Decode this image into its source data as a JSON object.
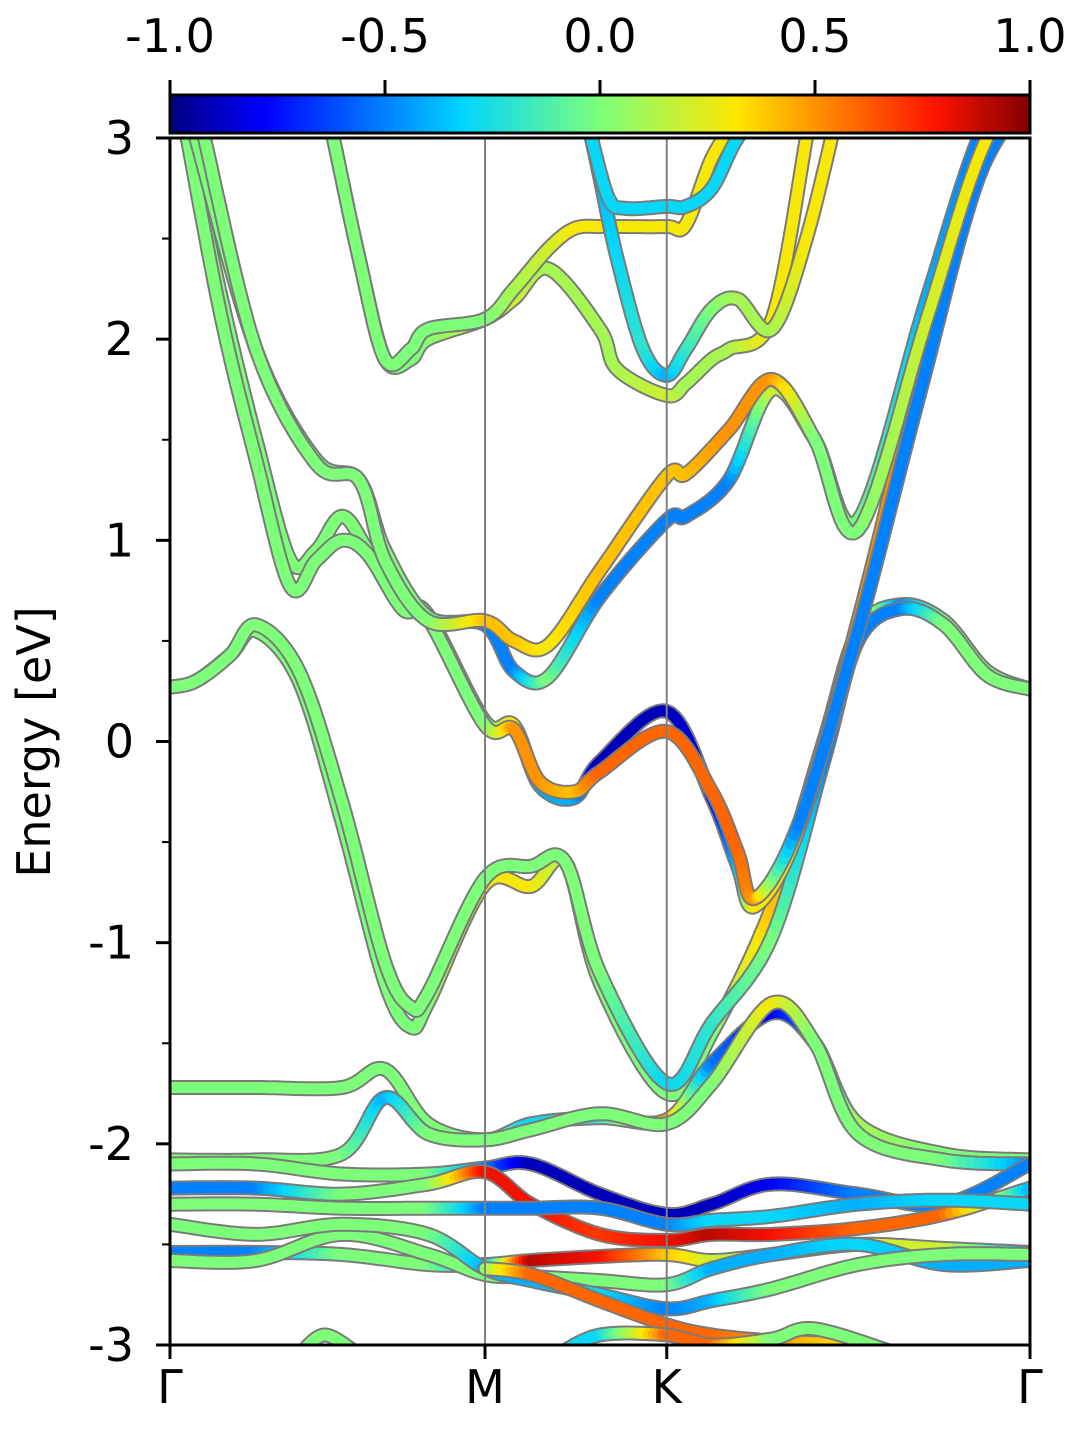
{
  "chart_data": {
    "type": "line",
    "title": "",
    "xlabel": "",
    "ylabel": "Energy [eV]",
    "ylim": [
      -3,
      3
    ],
    "y_ticks": [
      "3",
      "2",
      "1",
      "0",
      "-1",
      "-2",
      "-3"
    ],
    "y_tick_values": [
      3,
      2,
      1,
      0,
      -1,
      -2,
      -3
    ],
    "x_ticks": [
      "Γ",
      "M",
      "K",
      "Γ"
    ],
    "x_tick_positions": [
      0,
      0.3663,
      0.5776,
      1.0
    ],
    "vertical_lines_at": [
      0.3663,
      0.5776
    ],
    "grid": false,
    "colorbar": {
      "orientation": "horizontal",
      "placement": "top",
      "colormap": "jet",
      "range": [
        -1.0,
        1.0
      ],
      "tick_labels": [
        "-1.0",
        "-0.5",
        "0.0",
        "0.5",
        "1.0"
      ],
      "tick_values": [
        -1.0,
        -0.5,
        0.0,
        0.5,
        1.0
      ]
    },
    "series": [
      {
        "x": [
          0,
          0.03,
          0.07,
          0.1,
          0.15,
          0.2,
          0.25,
          0.28,
          0.3,
          0.3663,
          0.42,
          0.46,
          0.5,
          0.5776,
          0.63,
          0.7,
          0.76,
          0.8,
          0.85,
          0.9,
          0.95,
          1.0
        ],
        "y": [
          0.27,
          0.3,
          0.43,
          0.55,
          0.3,
          -0.4,
          -1.2,
          -1.42,
          -1.3,
          -0.71,
          -0.72,
          -0.6,
          -1.2,
          -1.75,
          -1.45,
          -0.82,
          0.0,
          0.55,
          0.68,
          0.6,
          0.35,
          0.26
        ],
        "c": [
          0,
          0,
          0,
          0,
          0,
          0,
          0,
          0,
          0,
          0.3,
          0.3,
          0.1,
          0,
          0,
          0,
          0.4,
          0.4,
          0.5,
          -0.5,
          0,
          0,
          0
        ]
      },
      {
        "x": [
          0,
          0.03,
          0.07,
          0.1,
          0.15,
          0.2,
          0.25,
          0.28,
          0.3,
          0.3663,
          0.42,
          0.46,
          0.5,
          0.5776,
          0.63,
          0.7,
          0.76,
          0.8,
          0.85,
          0.9,
          0.95,
          1.0
        ],
        "y": [
          0.27,
          0.3,
          0.43,
          0.58,
          0.35,
          -0.3,
          -1.1,
          -1.32,
          -1.25,
          -0.68,
          -0.62,
          -0.6,
          -1.15,
          -1.7,
          -1.4,
          -0.97,
          -0.1,
          0.5,
          0.66,
          0.58,
          0.33,
          0.26
        ],
        "c": [
          0,
          0,
          0,
          0,
          0,
          0,
          0,
          0,
          0,
          0,
          0,
          0,
          0,
          -0.3,
          -0.2,
          0,
          -0.5,
          -0.5,
          -0.5,
          0,
          0,
          0
        ]
      },
      {
        "x": [
          0.02,
          0.06,
          0.1,
          0.14,
          0.17,
          0.2,
          0.23,
          0.27,
          0.3,
          0.3663,
          0.4,
          0.43,
          0.47,
          0.5,
          0.5776,
          0.63,
          0.66,
          0.68,
          0.73,
          0.8,
          0.87,
          0.94,
          1.0
        ],
        "y": [
          3.0,
          2.2,
          1.5,
          0.9,
          0.95,
          1.12,
          0.95,
          0.68,
          0.63,
          0.1,
          0.08,
          -0.22,
          -0.28,
          -0.1,
          0.15,
          -0.28,
          -0.62,
          -0.82,
          -0.45,
          0.6,
          1.8,
          2.9,
          3.3
        ],
        "c": [
          0,
          0,
          0,
          0,
          0,
          0,
          0,
          0,
          0,
          0,
          0.3,
          -0.4,
          -0.4,
          -0.9,
          -0.9,
          -0.8,
          -0.4,
          0.3,
          0.3,
          0.5,
          0.5,
          0.2,
          0.2
        ]
      },
      {
        "x": [
          0.02,
          0.06,
          0.1,
          0.14,
          0.17,
          0.2,
          0.23,
          0.27,
          0.3,
          0.3663,
          0.4,
          0.43,
          0.47,
          0.5,
          0.5776,
          0.63,
          0.66,
          0.68,
          0.73,
          0.8,
          0.87,
          0.94,
          1.0
        ],
        "y": [
          3.0,
          2.1,
          1.4,
          0.77,
          0.9,
          1.0,
          0.93,
          0.66,
          0.61,
          0.08,
          0.06,
          -0.2,
          -0.25,
          -0.15,
          0.05,
          -0.25,
          -0.55,
          -0.78,
          -0.42,
          0.55,
          1.7,
          2.8,
          3.2
        ],
        "c": [
          0,
          0,
          0,
          0,
          0,
          0,
          0,
          0,
          0,
          0,
          0.5,
          0.5,
          0.4,
          0.6,
          0.6,
          0.6,
          0.6,
          0.5,
          -0.5,
          -0.5,
          -0.5,
          -0.5,
          -0.5
        ]
      },
      {
        "x": [
          0.03,
          0.1,
          0.17,
          0.22,
          0.25,
          0.3,
          0.3663,
          0.4,
          0.44,
          0.5,
          0.5776,
          0.6,
          0.65,
          0.7,
          0.75,
          0.8,
          0.88,
          0.94,
          1.0
        ],
        "y": [
          3.0,
          1.95,
          1.4,
          1.3,
          0.95,
          0.62,
          0.58,
          0.35,
          0.32,
          0.72,
          1.1,
          1.12,
          1.3,
          1.75,
          1.5,
          1.1,
          2.2,
          3.0,
          3.5
        ],
        "c": [
          0,
          0,
          0,
          0,
          0,
          0,
          -0.5,
          -0.5,
          0,
          -0.5,
          -0.5,
          -0.5,
          -0.5,
          0.2,
          0,
          0,
          -0.4,
          -0.5,
          -0.5
        ]
      },
      {
        "x": [
          0.04,
          0.1,
          0.17,
          0.22,
          0.25,
          0.3,
          0.3663,
          0.4,
          0.44,
          0.5,
          0.5776,
          0.6,
          0.65,
          0.7,
          0.75,
          0.8,
          0.88,
          0.94,
          1.0
        ],
        "y": [
          3.0,
          1.95,
          1.38,
          1.3,
          0.9,
          0.6,
          0.6,
          0.5,
          0.48,
          0.85,
          1.32,
          1.33,
          1.55,
          1.8,
          1.5,
          1.05,
          2.1,
          2.9,
          3.4
        ],
        "c": [
          0,
          0,
          0,
          0,
          0,
          0,
          0.4,
          0.4,
          0.3,
          0.4,
          0.4,
          0.4,
          0.5,
          0.5,
          0,
          0,
          0.2,
          0.3,
          0.3
        ]
      },
      {
        "x": [
          0.19,
          0.22,
          0.25,
          0.28,
          0.3,
          0.3663,
          0.4,
          0.44,
          0.5,
          0.52,
          0.5776,
          0.6,
          0.63,
          0.65,
          0.7,
          0.74
        ],
        "y": [
          3.0,
          2.4,
          1.9,
          1.9,
          2.0,
          2.1,
          2.2,
          2.35,
          2.05,
          1.85,
          1.72,
          1.78,
          1.9,
          1.95,
          2.1,
          3.0
        ],
        "c": [
          0,
          0,
          0,
          0,
          0,
          0.2,
          0.2,
          0.1,
          0.1,
          0.1,
          0.2,
          0.1,
          0.1,
          0.1,
          0.3,
          0.3
        ]
      },
      {
        "x": [
          0.19,
          0.22,
          0.25,
          0.28,
          0.3,
          0.3663,
          0.4,
          0.44,
          0.47,
          0.5,
          0.52,
          0.5776,
          0.6,
          0.63,
          0.66
        ],
        "y": [
          3.0,
          2.4,
          1.9,
          1.95,
          2.05,
          2.1,
          2.25,
          2.45,
          2.55,
          2.56,
          2.56,
          2.56,
          2.57,
          2.9,
          3.1
        ],
        "c": [
          0,
          0,
          0,
          0,
          0,
          0,
          0.1,
          0.2,
          0.3,
          0.3,
          0.3,
          0.3,
          0.3,
          0.3,
          0.3
        ]
      },
      {
        "x": [
          0.49,
          0.5,
          0.52,
          0.55,
          0.5776,
          0.6,
          0.63,
          0.66,
          0.7,
          0.74,
          0.78
        ],
        "y": [
          3.0,
          2.8,
          2.4,
          1.95,
          1.82,
          1.95,
          2.15,
          2.2,
          2.05,
          2.5,
          3.2
        ],
        "c": [
          -0.4,
          -0.4,
          -0.3,
          -0.2,
          -0.4,
          -0.2,
          0,
          0.1,
          0.1,
          0.3,
          0.3
        ]
      },
      {
        "x": [
          0.49,
          0.51,
          0.53,
          0.5776,
          0.6,
          0.63,
          0.66,
          0.7
        ],
        "y": [
          3.0,
          2.7,
          2.65,
          2.66,
          2.66,
          2.75,
          3.0,
          3.2
        ],
        "c": [
          -0.3,
          -0.3,
          -0.3,
          -0.3,
          -0.3,
          -0.3,
          -0.3,
          -0.3
        ]
      },
      {
        "x": [
          0,
          0.1,
          0.2,
          0.25,
          0.3,
          0.3663,
          0.42,
          0.5,
          0.5776,
          0.63,
          0.7,
          0.75,
          0.8,
          0.9,
          1.0
        ],
        "y": [
          -1.72,
          -1.72,
          -1.72,
          -1.63,
          -1.9,
          -1.98,
          -1.9,
          -1.87,
          -1.88,
          -1.6,
          -1.35,
          -1.5,
          -1.9,
          -2.05,
          -2.08
        ],
        "c": [
          0,
          0,
          0,
          0,
          0,
          0,
          -0.3,
          -0.2,
          0.5,
          -0.5,
          -0.8,
          -0.5,
          0.1,
          0,
          0
        ]
      },
      {
        "x": [
          0,
          0.1,
          0.2,
          0.25,
          0.3,
          0.3663,
          0.42,
          0.5,
          0.5776,
          0.63,
          0.7,
          0.75,
          0.8,
          0.9,
          1.0
        ],
        "y": [
          -2.08,
          -2.08,
          -2.05,
          -1.77,
          -1.95,
          -1.98,
          -1.93,
          -1.85,
          -1.9,
          -1.7,
          -1.3,
          -1.5,
          -1.95,
          -2.08,
          -2.1
        ],
        "c": [
          0,
          0,
          0,
          -0.4,
          0,
          0,
          0,
          0,
          0,
          0,
          0.3,
          0,
          0,
          0,
          -0.5
        ]
      },
      {
        "x": [
          0,
          0.1,
          0.2,
          0.3,
          0.3663,
          0.42,
          0.5,
          0.5776,
          0.63,
          0.7,
          0.8,
          0.9,
          1.0
        ],
        "y": [
          -2.1,
          -2.1,
          -2.15,
          -2.15,
          -2.12,
          -2.1,
          -2.25,
          -2.35,
          -2.3,
          -2.2,
          -2.25,
          -2.3,
          -2.1
        ],
        "c": [
          0,
          0,
          0,
          0,
          -0.5,
          -0.9,
          -0.9,
          -0.9,
          -0.9,
          -0.8,
          -0.5,
          -0.5,
          -0.5
        ]
      },
      {
        "x": [
          0,
          0.1,
          0.2,
          0.3,
          0.3663,
          0.42,
          0.5,
          0.5776,
          0.63,
          0.7,
          0.8,
          0.9,
          1.0
        ],
        "y": [
          -2.22,
          -2.22,
          -2.25,
          -2.2,
          -2.14,
          -2.3,
          -2.45,
          -2.48,
          -2.45,
          -2.45,
          -2.42,
          -2.35,
          -2.22
        ],
        "c": [
          -0.5,
          -0.5,
          0,
          0,
          0.8,
          0.8,
          0.7,
          0.8,
          0.9,
          0.8,
          0.6,
          0.6,
          -0.4
        ]
      },
      {
        "x": [
          0,
          0.1,
          0.2,
          0.3,
          0.3663,
          0.42,
          0.5,
          0.5776,
          0.63,
          0.7,
          0.8,
          0.9,
          1.0
        ],
        "y": [
          -2.3,
          -2.3,
          -2.32,
          -2.32,
          -2.32,
          -2.32,
          -2.32,
          -2.4,
          -2.38,
          -2.36,
          -2.3,
          -2.28,
          -2.3
        ],
        "c": [
          0,
          0,
          0,
          0,
          -0.5,
          -0.5,
          -0.5,
          -0.5,
          -0.3,
          -0.3,
          -0.4,
          -0.3,
          -0.3
        ]
      },
      {
        "x": [
          0,
          0.1,
          0.2,
          0.3,
          0.3663,
          0.42,
          0.5,
          0.5776,
          0.63,
          0.7,
          0.8,
          0.9,
          1.0
        ],
        "y": [
          -2.54,
          -2.54,
          -2.55,
          -2.6,
          -2.6,
          -2.58,
          -2.56,
          -2.55,
          -2.58,
          -2.55,
          -2.5,
          -2.52,
          -2.54
        ],
        "c": [
          -0.5,
          -0.5,
          0,
          0,
          -0.4,
          0.9,
          0.8,
          0.4,
          0.2,
          0.1,
          0.2,
          0.2,
          -0.5
        ]
      },
      {
        "x": [
          0,
          0.1,
          0.2,
          0.3,
          0.3663,
          0.42,
          0.5,
          0.5776,
          0.63,
          0.7,
          0.8,
          0.9,
          1.0
        ],
        "y": [
          -2.58,
          -2.58,
          -2.45,
          -2.55,
          -2.65,
          -2.66,
          -2.68,
          -2.7,
          -2.62,
          -2.55,
          -2.5,
          -2.6,
          -2.58
        ],
        "c": [
          0,
          0,
          0,
          0,
          0,
          0,
          0,
          0,
          -0.4,
          -0.4,
          -0.3,
          -0.4,
          -0.4
        ]
      },
      {
        "x": [
          0,
          0.1,
          0.2,
          0.3,
          0.3663,
          0.42,
          0.5,
          0.5776,
          0.63,
          0.7,
          0.8,
          0.9,
          1.0
        ],
        "y": [
          -2.4,
          -2.45,
          -2.4,
          -2.45,
          -2.62,
          -2.68,
          -2.75,
          -2.82,
          -2.78,
          -2.72,
          -2.6,
          -2.55,
          -2.55
        ],
        "c": [
          0,
          0,
          0,
          0,
          -0.4,
          -0.4,
          -0.3,
          -0.5,
          -0.4,
          0,
          0,
          0,
          0
        ]
      },
      {
        "x": [
          0.3663,
          0.42,
          0.5,
          0.5776,
          0.63,
          0.7,
          0.8,
          0.85
        ],
        "y": [
          -2.62,
          -2.65,
          -2.78,
          -2.9,
          -2.95,
          -2.98,
          -3.0,
          -3.05
        ],
        "c": [
          0,
          0.6,
          0.6,
          0.6,
          0.6,
          0.5,
          0.3,
          0.3
        ]
      },
      {
        "x": [
          0.15,
          0.18,
          0.22
        ],
        "y": [
          -3.05,
          -2.95,
          -3.05
        ],
        "c": [
          0,
          0,
          0
        ]
      },
      {
        "x": [
          0.45,
          0.5,
          0.5776,
          0.63,
          0.7,
          0.75,
          0.85
        ],
        "y": [
          -3.05,
          -2.95,
          -2.95,
          -3.0,
          -2.97,
          -2.92,
          -3.05
        ],
        "c": [
          -0.3,
          -0.3,
          0.6,
          0.6,
          0,
          0,
          0
        ]
      }
    ]
  }
}
